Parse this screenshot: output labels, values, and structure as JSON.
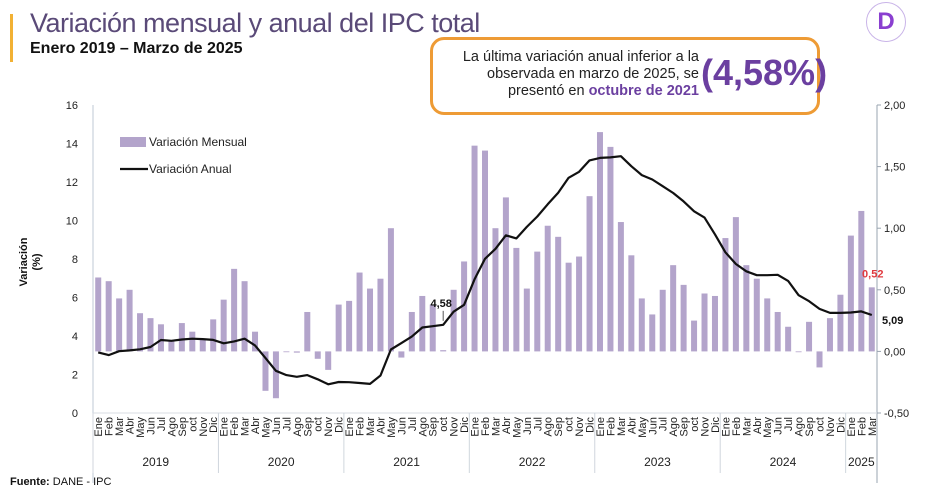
{
  "header": {
    "title": "Variación mensual y anual del IPC total",
    "subtitle": "Enero 2019 – Marzo de 2025"
  },
  "callout": {
    "text_pre": "La última variación anual inferior a la observada en marzo de 2025, se presentó en ",
    "text_highlight": "octubre de 2021",
    "value": "(4,58%)"
  },
  "logo": {
    "letter": "D"
  },
  "footer": {
    "source_label": "Fuente:",
    "source_value": " DANE - IPC"
  },
  "colors": {
    "bars": "#B3A4CB",
    "line": "#111111",
    "callout_border": "#EE9B35",
    "highlight": "#6B3FA0",
    "red_label": "#E0393E"
  },
  "chart_data": {
    "type": "bar+line",
    "ylabel": "Variación (%)",
    "ylim_left": [
      0,
      16
    ],
    "yticks_left": [
      "0",
      "2",
      "4",
      "6",
      "8",
      "10",
      "12",
      "14",
      "16"
    ],
    "ylim_right": [
      -0.5,
      2.0
    ],
    "yticks_right": [
      "-0,50",
      "0,00",
      "0,50",
      "1,00",
      "1,50",
      "2,00"
    ],
    "grid": false,
    "legend": "top-left",
    "months": [
      "Ene",
      "Feb",
      "Mar",
      "Abr",
      "May",
      "Jun",
      "Jul",
      "Ago",
      "Sep",
      "oct",
      "Nov",
      "Dic"
    ],
    "years": [
      "2019",
      "2020",
      "2021",
      "2022",
      "2023",
      "2024",
      "2025"
    ],
    "series": [
      {
        "name": "Variación Mensual",
        "axis": "right",
        "type": "bar",
        "values": [
          0.6,
          0.57,
          0.43,
          0.5,
          0.31,
          0.27,
          0.22,
          0.09,
          0.23,
          0.16,
          0.1,
          0.26,
          0.42,
          0.67,
          0.57,
          0.16,
          -0.32,
          -0.38,
          0.0,
          -0.01,
          0.32,
          -0.06,
          -0.15,
          0.38,
          0.41,
          0.64,
          0.51,
          0.59,
          1.0,
          -0.05,
          0.32,
          0.45,
          0.38,
          0.01,
          0.5,
          0.73,
          1.67,
          1.63,
          1.0,
          1.25,
          0.84,
          0.51,
          0.81,
          1.02,
          0.93,
          0.72,
          0.77,
          1.26,
          1.78,
          1.66,
          1.05,
          0.78,
          0.43,
          0.3,
          0.5,
          0.7,
          0.54,
          0.25,
          0.47,
          0.45,
          0.92,
          1.09,
          0.7,
          0.59,
          0.43,
          0.32,
          0.2,
          0.0,
          0.24,
          -0.13,
          0.27,
          0.46,
          0.94,
          1.14,
          0.52
        ]
      },
      {
        "name": "Variación Anual",
        "axis": "left",
        "type": "line",
        "values": [
          3.15,
          3.01,
          3.21,
          3.25,
          3.31,
          3.43,
          3.79,
          3.75,
          3.82,
          3.86,
          3.84,
          3.8,
          3.62,
          3.72,
          3.86,
          3.51,
          2.85,
          2.19,
          1.97,
          1.88,
          1.97,
          1.75,
          1.49,
          1.61,
          1.6,
          1.56,
          1.51,
          1.95,
          3.3,
          3.63,
          3.97,
          4.44,
          4.51,
          4.58,
          5.26,
          5.62,
          6.94,
          8.01,
          8.53,
          9.23,
          9.07,
          9.67,
          10.21,
          10.84,
          11.44,
          12.22,
          12.53,
          13.12,
          13.25,
          13.28,
          13.34,
          12.82,
          12.36,
          12.13,
          11.78,
          11.43,
          10.99,
          10.48,
          10.15,
          9.28,
          8.35,
          7.74,
          7.36,
          7.16,
          7.16,
          7.18,
          6.86,
          6.12,
          5.81,
          5.41,
          5.2,
          5.2,
          5.22,
          5.28,
          5.09
        ]
      }
    ],
    "annotations": [
      {
        "label": "4,58",
        "at": "oct 2021"
      },
      {
        "label": "0,52",
        "at": "Mar 2025"
      },
      {
        "label": "5,09",
        "at": "Mar 2025"
      }
    ]
  }
}
